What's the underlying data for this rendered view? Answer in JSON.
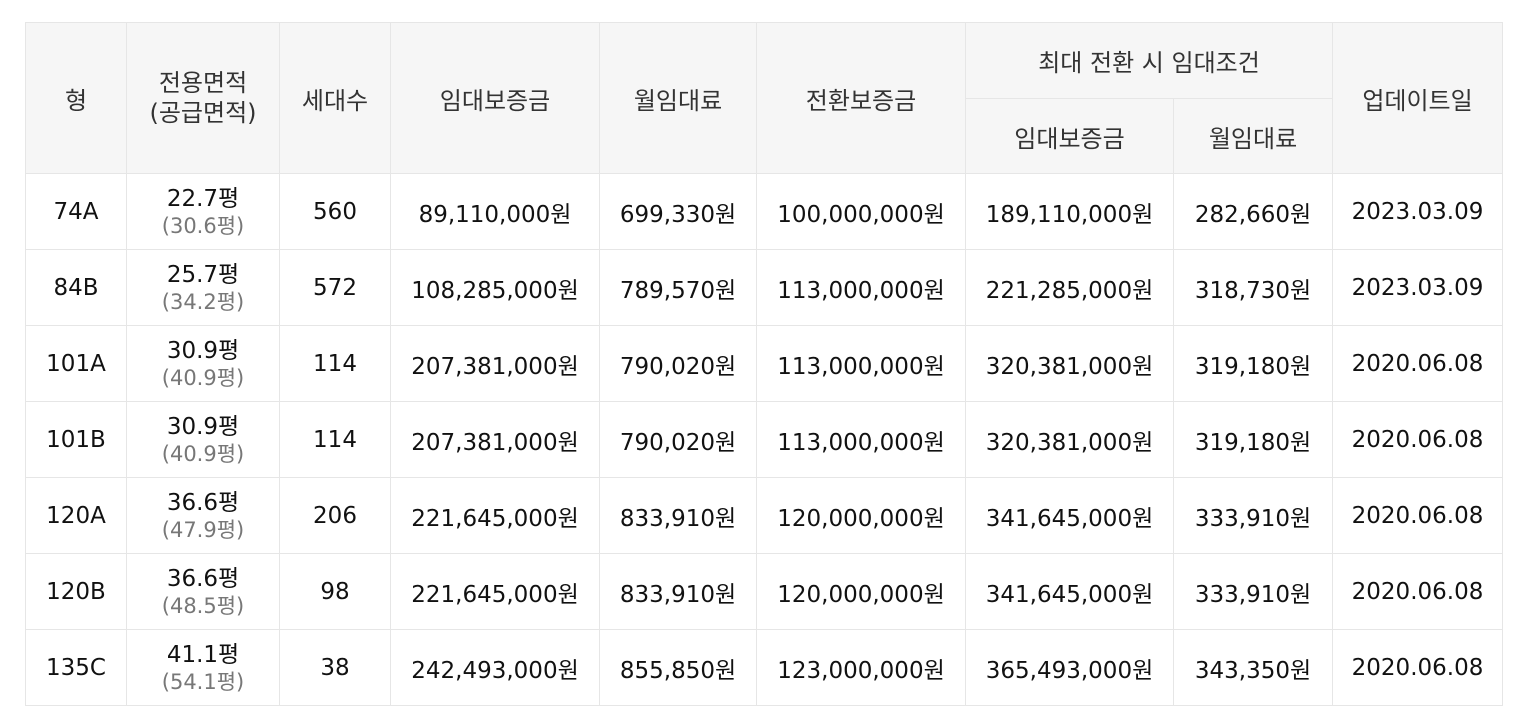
{
  "headers": {
    "type": "형",
    "area_line1": "전용면적",
    "area_line2": "(공급면적)",
    "households": "세대수",
    "deposit": "임대보증금",
    "monthly_rent": "월임대료",
    "conversion_deposit": "전환보증금",
    "max_conversion": "최대 전환 시 임대조건",
    "max_deposit": "임대보증금",
    "max_monthly_rent": "월임대료",
    "update_date": "업데이트일"
  },
  "rows": [
    {
      "type": "74A",
      "area": "22.7평",
      "supply_area": "(30.6평)",
      "households": "560",
      "deposit": "89,110,000원",
      "monthly_rent": "699,330원",
      "conversion_deposit": "100,000,000원",
      "max_deposit": "189,110,000원",
      "max_monthly_rent": "282,660원",
      "update_date": "2023.03.09"
    },
    {
      "type": "84B",
      "area": "25.7평",
      "supply_area": "(34.2평)",
      "households": "572",
      "deposit": "108,285,000원",
      "monthly_rent": "789,570원",
      "conversion_deposit": "113,000,000원",
      "max_deposit": "221,285,000원",
      "max_monthly_rent": "318,730원",
      "update_date": "2023.03.09"
    },
    {
      "type": "101A",
      "area": "30.9평",
      "supply_area": "(40.9평)",
      "households": "114",
      "deposit": "207,381,000원",
      "monthly_rent": "790,020원",
      "conversion_deposit": "113,000,000원",
      "max_deposit": "320,381,000원",
      "max_monthly_rent": "319,180원",
      "update_date": "2020.06.08"
    },
    {
      "type": "101B",
      "area": "30.9평",
      "supply_area": "(40.9평)",
      "households": "114",
      "deposit": "207,381,000원",
      "monthly_rent": "790,020원",
      "conversion_deposit": "113,000,000원",
      "max_deposit": "320,381,000원",
      "max_monthly_rent": "319,180원",
      "update_date": "2020.06.08"
    },
    {
      "type": "120A",
      "area": "36.6평",
      "supply_area": "(47.9평)",
      "households": "206",
      "deposit": "221,645,000원",
      "monthly_rent": "833,910원",
      "conversion_deposit": "120,000,000원",
      "max_deposit": "341,645,000원",
      "max_monthly_rent": "333,910원",
      "update_date": "2020.06.08"
    },
    {
      "type": "120B",
      "area": "36.6평",
      "supply_area": "(48.5평)",
      "households": "98",
      "deposit": "221,645,000원",
      "monthly_rent": "833,910원",
      "conversion_deposit": "120,000,000원",
      "max_deposit": "341,645,000원",
      "max_monthly_rent": "333,910원",
      "update_date": "2020.06.08"
    },
    {
      "type": "135C",
      "area": "41.1평",
      "supply_area": "(54.1평)",
      "households": "38",
      "deposit": "242,493,000원",
      "monthly_rent": "855,850원",
      "conversion_deposit": "123,000,000원",
      "max_deposit": "365,493,000원",
      "max_monthly_rent": "343,350원",
      "update_date": "2020.06.08"
    }
  ]
}
